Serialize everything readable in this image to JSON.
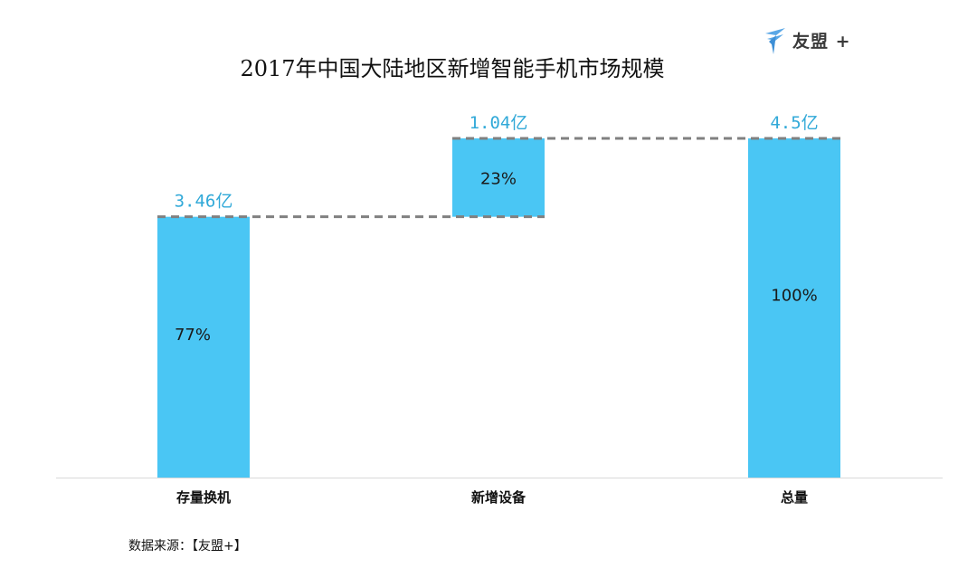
{
  "logo": {
    "text": "友盟 +",
    "icon": "bird-icon",
    "color": "#5aa7e6"
  },
  "source": "数据来源：【友盟+】",
  "chart_data": {
    "type": "bar",
    "subtype": "waterfall",
    "title": "2017年中国大陆地区新增智能手机市场规模",
    "xlabel": "",
    "ylabel": "",
    "unit": "亿",
    "ylim": [
      0,
      4.5
    ],
    "grid": false,
    "categories": [
      "存量换机",
      "新增设备",
      "总量"
    ],
    "values": [
      3.46,
      1.04,
      4.5
    ],
    "bases": [
      0,
      3.46,
      0
    ],
    "value_labels": [
      "3.46亿",
      "1.04亿",
      "4.5亿"
    ],
    "percent_labels": [
      "77%",
      "23%",
      "100%"
    ],
    "colors": {
      "bar": "#4ac6f4",
      "value_label": "#31a9d8",
      "connector": "#808080",
      "axis": "#d9d9d9"
    }
  }
}
